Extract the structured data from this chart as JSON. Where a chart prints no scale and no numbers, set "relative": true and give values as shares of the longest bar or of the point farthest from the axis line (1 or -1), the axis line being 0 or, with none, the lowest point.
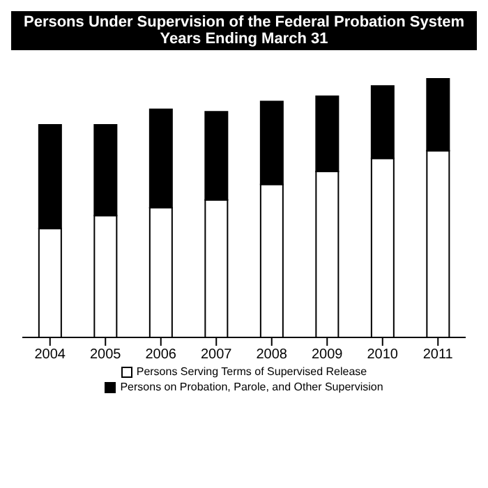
{
  "chart_data": {
    "type": "bar",
    "title": "Persons Under Supervision of the Federal Probation System",
    "subtitle": "Years Ending March 31",
    "categories": [
      "2004",
      "2005",
      "2006",
      "2007",
      "2008",
      "2009",
      "2010",
      "2011"
    ],
    "stacked": true,
    "relative": true,
    "legend": "bottom",
    "grid": false,
    "series": [
      {
        "name": "Persons Serving Terms of Supervised Release",
        "color": "#ffffff",
        "values": [
          0.42,
          0.47,
          0.5,
          0.53,
          0.59,
          0.64,
          0.69,
          0.72
        ]
      },
      {
        "name": "Persons on Probation, Parole, and Other Supervision",
        "color": "#000000",
        "values": [
          0.4,
          0.35,
          0.38,
          0.34,
          0.32,
          0.29,
          0.28,
          0.28
        ]
      }
    ]
  }
}
